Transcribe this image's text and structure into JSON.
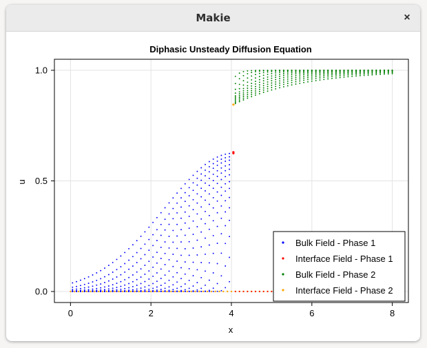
{
  "window": {
    "title": "Makie",
    "close_glyph": "×"
  },
  "chart_data": {
    "type": "scatter",
    "title": "Diphasic Unsteady Diffusion Equation",
    "xlabel": "x",
    "ylabel": "u",
    "xlim": [
      -0.4,
      8.4
    ],
    "ylim": [
      -0.05,
      1.05
    ],
    "xticks": [
      0,
      2,
      4,
      6,
      8
    ],
    "xtick_labels": [
      "0",
      "2",
      "4",
      "6",
      "8"
    ],
    "yticks": [
      0.0,
      0.5,
      1.0
    ],
    "ytick_labels": [
      "0.0",
      "0.5",
      "1.0"
    ],
    "grid": true,
    "legend_position": "bottom-right",
    "interface_x": 4.05,
    "series": [
      {
        "name": "Bulk Field - Phase 1",
        "color": "#0000ff",
        "curves": [
          {
            "u_interface": 0.625,
            "width": 2.4
          },
          {
            "u_interface": 0.61,
            "width": 2.15
          },
          {
            "u_interface": 0.595,
            "width": 1.95
          },
          {
            "u_interface": 0.575,
            "width": 1.75
          },
          {
            "u_interface": 0.555,
            "width": 1.57
          },
          {
            "u_interface": 0.53,
            "width": 1.4
          },
          {
            "u_interface": 0.5,
            "width": 1.23
          },
          {
            "u_interface": 0.47,
            "width": 1.07
          },
          {
            "u_interface": 0.43,
            "width": 0.92
          },
          {
            "u_interface": 0.385,
            "width": 0.77
          },
          {
            "u_interface": 0.33,
            "width": 0.62
          },
          {
            "u_interface": 0.26,
            "width": 0.47
          },
          {
            "u_interface": 0.17,
            "width": 0.32
          },
          {
            "u_interface": 0.06,
            "width": 0.18
          }
        ]
      },
      {
        "name": "Interface Field - Phase 1",
        "color": "#ff0000"
      },
      {
        "name": "Bulk Field - Phase 2",
        "color": "#008000",
        "curves": [
          {
            "u_interface": 0.845,
            "decay": 1.7
          },
          {
            "u_interface": 0.85,
            "decay": 1.45
          },
          {
            "u_interface": 0.855,
            "decay": 1.25
          },
          {
            "u_interface": 0.86,
            "decay": 1.07
          },
          {
            "u_interface": 0.865,
            "decay": 0.9
          },
          {
            "u_interface": 0.87,
            "decay": 0.74
          },
          {
            "u_interface": 0.875,
            "decay": 0.6
          },
          {
            "u_interface": 0.885,
            "decay": 0.46
          },
          {
            "u_interface": 0.9,
            "decay": 0.33
          },
          {
            "u_interface": 0.925,
            "decay": 0.22
          },
          {
            "u_interface": 0.96,
            "decay": 0.13
          }
        ]
      },
      {
        "name": "Interface Field - Phase 2",
        "color": "#ffa500"
      }
    ]
  }
}
